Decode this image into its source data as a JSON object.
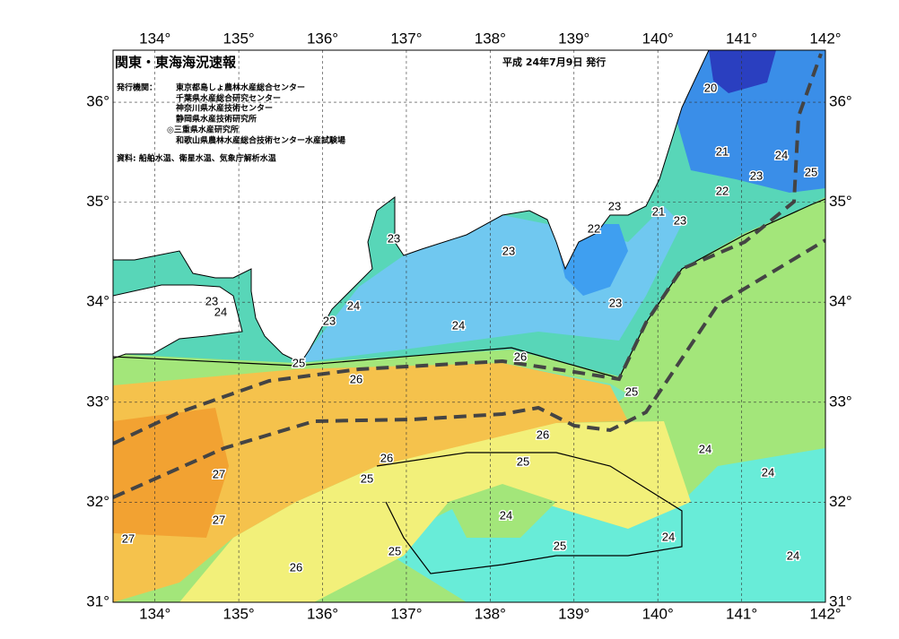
{
  "header": {
    "title": "関東・東海海況速報",
    "date": "平成 24年7月9日 発行"
  },
  "issuers": {
    "label": "発行機関：",
    "names": [
      "東京都島しょ農林水産総合センター",
      "千葉県水産総合研究センター",
      "神奈川県水産技術センター",
      "静岡県水産技術研究所",
      "◎三重県水産研究所",
      "和歌山県農林水産総合技術センター水産試験場"
    ]
  },
  "source": "資料: 船舶水温、衛星水温、気象庁解析水温",
  "lon_lim": [
    133.5,
    142
  ],
  "lat_lim": [
    31,
    36.52
  ],
  "longitude_ticks": [
    {
      "value": 134,
      "label": "134°"
    },
    {
      "value": 135,
      "label": "135°"
    },
    {
      "value": 136,
      "label": "136°"
    },
    {
      "value": 137,
      "label": "137°"
    },
    {
      "value": 138,
      "label": "138°"
    },
    {
      "value": 139,
      "label": "139°"
    },
    {
      "value": 140,
      "label": "140°"
    },
    {
      "value": 141,
      "label": "141°"
    },
    {
      "value": 142,
      "label": "142°"
    }
  ],
  "latitude_ticks": [
    {
      "value": 31,
      "label": "31°"
    },
    {
      "value": 32,
      "label": "32°"
    },
    {
      "value": 33,
      "label": "33°"
    },
    {
      "value": 34,
      "label": "34°"
    },
    {
      "value": 35,
      "label": "35°"
    },
    {
      "value": 36,
      "label": "36°"
    }
  ],
  "contour_labels": [
    20,
    21,
    24,
    25,
    23,
    22,
    23,
    21,
    23,
    22,
    23,
    23,
    23,
    24,
    23,
    24,
    23,
    24,
    25,
    26,
    26,
    25,
    26,
    24,
    26,
    25,
    25,
    27,
    24,
    27,
    24,
    24,
    27,
    25,
    25,
    24,
    26
  ]
}
